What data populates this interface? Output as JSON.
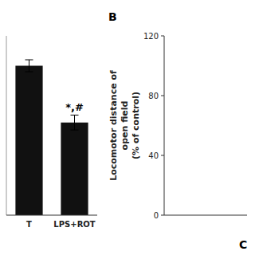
{
  "chart_data": [
    {
      "type": "bar",
      "categories": [
        "T",
        "LPS+ROT"
      ],
      "values": [
        100,
        62
      ],
      "errors": [
        4,
        5
      ],
      "color": "#111111",
      "ylim": [
        0,
        120
      ],
      "tick_labels": "x",
      "annotations": [
        {
          "label": "*,#",
          "x": "LPS+ROT"
        }
      ]
    },
    {
      "type": "bar",
      "categories": [],
      "values": [],
      "ylabel": "Locomotor distance of\nopen field\n(% of control)",
      "ylim": [
        0,
        120
      ],
      "yticks": [
        0,
        40,
        80,
        120
      ],
      "tick_labels": "y",
      "annotations": [
        "B",
        "C"
      ]
    }
  ]
}
